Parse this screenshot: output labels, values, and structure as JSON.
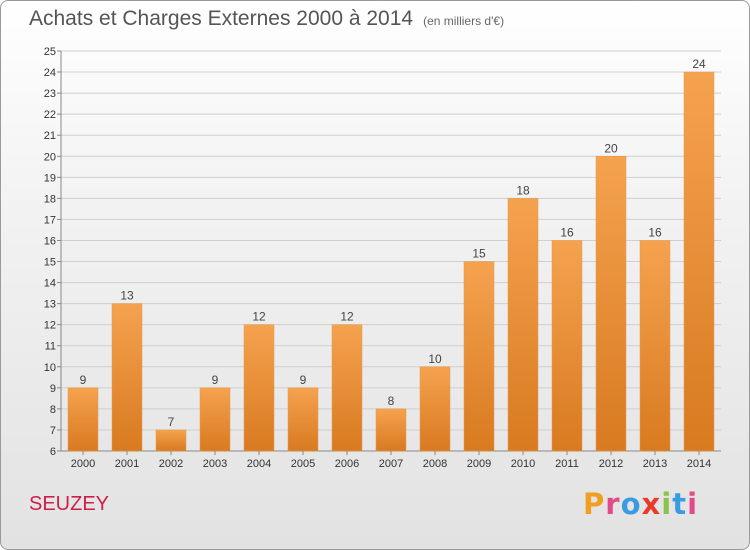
{
  "header": {
    "title": "Achats et Charges Externes 2000 à 2014",
    "subtitle": "(en milliers d'€)"
  },
  "footer": {
    "place": "SEUZEY",
    "logo_letters": [
      "P",
      "r",
      "o",
      "x",
      "i",
      "t",
      "i"
    ],
    "logo_colors": [
      "#f0a020",
      "#e24b8a",
      "#3a9be0",
      "#e63c2e",
      "#8bc34a",
      "#3a9be0",
      "#e24b8a"
    ]
  },
  "colors": {
    "bar_top": "#f5a24f",
    "bar_bottom": "#d87a20",
    "grid": "#cfcfcf",
    "axis": "#888888"
  },
  "chart_data": {
    "type": "bar",
    "title": "Achats et Charges Externes 2000 à 2014",
    "subtitle": "(en milliers d'€)",
    "categories": [
      "2000",
      "2001",
      "2002",
      "2003",
      "2004",
      "2005",
      "2006",
      "2007",
      "2008",
      "2009",
      "2010",
      "2011",
      "2012",
      "2013",
      "2014"
    ],
    "values": [
      9,
      13,
      7,
      9,
      12,
      9,
      12,
      8,
      10,
      15,
      18,
      16,
      20,
      16,
      24
    ],
    "ylim": [
      6,
      25
    ],
    "yticks": [
      "6",
      "7",
      "8",
      "9",
      "10",
      "11",
      "12",
      "13",
      "14",
      "15",
      "16",
      "17",
      "18",
      "19",
      "20",
      "21",
      "22",
      "23",
      "24",
      "25"
    ],
    "grid": true,
    "xlabel": "",
    "ylabel": ""
  }
}
